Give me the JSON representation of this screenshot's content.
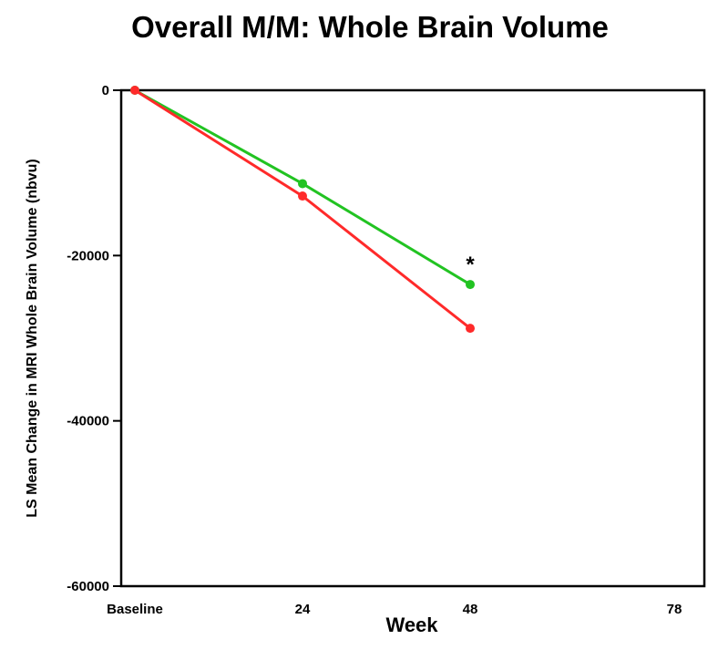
{
  "chart_data": {
    "type": "line",
    "title": "Overall M/M: Whole Brain Volume",
    "xlabel": "Week",
    "ylabel": "LS Mean Change in MRI Whole Brain Volume (nbvu)",
    "categories": [
      "Baseline",
      "24",
      "48",
      "78"
    ],
    "yticks": [
      0,
      -20000,
      -40000,
      -60000
    ],
    "ytick_labels": [
      "0",
      "-20000",
      "-40000",
      "-60000"
    ],
    "ylim": [
      -60000,
      0
    ],
    "grid": false,
    "legend": "none",
    "series": [
      {
        "color": "#22c322",
        "values": [
          0,
          -11300,
          -23500,
          null
        ]
      },
      {
        "color": "#ff2a2a",
        "values": [
          0,
          -12800,
          -28800,
          null
        ]
      }
    ],
    "annotations": [
      {
        "text": "*",
        "category": "48",
        "y": -20400
      }
    ]
  }
}
